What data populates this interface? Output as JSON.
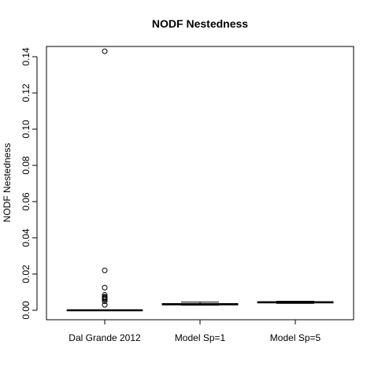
{
  "chart_data": {
    "type": "box",
    "title": "NODF Nestedness",
    "ylabel": "NODF Nestedness",
    "xlabel": "",
    "ylim": [
      -0.006,
      0.149
    ],
    "yticks": [
      0.0,
      0.02,
      0.04,
      0.06,
      0.08,
      0.1,
      0.12,
      0.14
    ],
    "ytick_labels": [
      "0.00",
      "0.02",
      "0.04",
      "0.06",
      "0.08",
      "0.10",
      "0.12",
      "0.14"
    ],
    "categories": [
      "Dal Grande 2012",
      "Model Sp=1",
      "Model Sp=5"
    ],
    "boxes": [
      {
        "min": 0.0,
        "q1": 0.0,
        "median": 0.0,
        "q3": 0.0,
        "max": 0.0,
        "outliers": [
          0.143,
          0.022,
          0.0125,
          0.0085,
          0.0075,
          0.007,
          0.0065,
          0.006,
          0.005,
          0.003
        ]
      },
      {
        "min": 0.0028,
        "q1": 0.003,
        "median": 0.0033,
        "q3": 0.0037,
        "max": 0.0045,
        "outliers": []
      },
      {
        "min": 0.0038,
        "q1": 0.0041,
        "median": 0.0044,
        "q3": 0.0047,
        "max": 0.005,
        "outliers": []
      }
    ],
    "grid": false,
    "legend": "none"
  }
}
